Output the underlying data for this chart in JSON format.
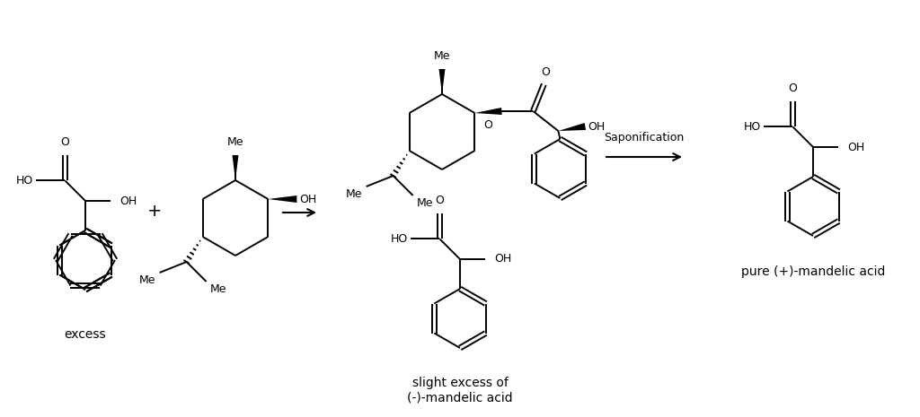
{
  "background_color": "#ffffff",
  "figsize": [
    10.24,
    4.65
  ],
  "dpi": 100,
  "text_color": "#000000",
  "line_color": "#000000",
  "labels": {
    "excess": "excess",
    "saponification": "Saponification",
    "pure_product": "pure (+)-mandelic acid",
    "slight_excess": "slight excess of\n(-)-mandelic acid"
  },
  "font_size_small": 9,
  "font_size_label": 10,
  "font_size_plus": 14,
  "lw": 1.4
}
